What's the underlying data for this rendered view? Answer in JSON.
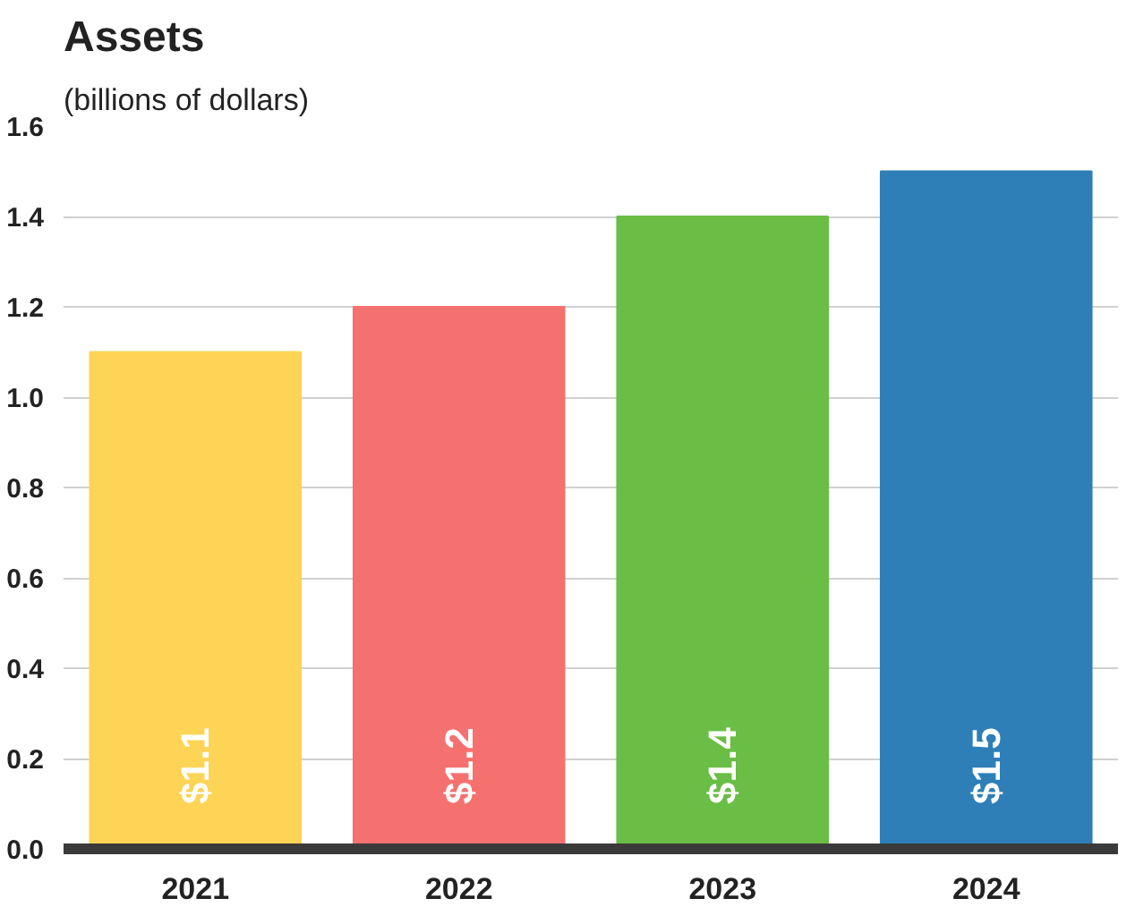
{
  "chart_data": {
    "type": "bar",
    "title": "Assets",
    "subtitle": "(billions of dollars)",
    "categories": [
      "2021",
      "2022",
      "2023",
      "2024"
    ],
    "values": [
      1.1,
      1.2,
      1.4,
      1.5
    ],
    "colors": [
      "#fdd455",
      "#f47170",
      "#6abd45",
      "#2e7fb8"
    ],
    "value_labels": [
      "$1.1",
      "$1.2",
      "$1.4",
      "$1.5"
    ],
    "ylim": [
      0,
      1.6
    ],
    "yticks": [
      {
        "value": 0,
        "label": "0.0"
      },
      0.2,
      0.4,
      0.6,
      0.8,
      {
        "value": 1,
        "label": "1.0"
      },
      1.2,
      1.4,
      1.6
    ],
    "grid": "y"
  }
}
